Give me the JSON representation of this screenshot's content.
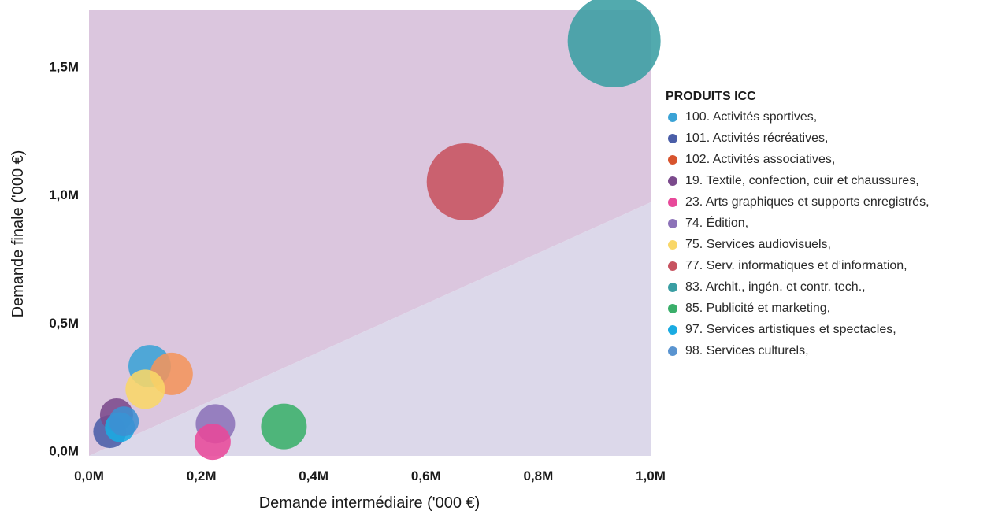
{
  "chart_data": {
    "type": "scatter",
    "xlabel": "Demande intermédiaire ('000 €)",
    "ylabel": "Demande finale ('000 €)",
    "xlim": [
      0,
      1.0
    ],
    "ylim": [
      -0.02,
      1.72
    ],
    "x_ticks": [
      {
        "value": 0.0,
        "label": "0,0M"
      },
      {
        "value": 0.2,
        "label": "0,2M"
      },
      {
        "value": 0.4,
        "label": "0,4M"
      },
      {
        "value": 0.6,
        "label": "0,6M"
      },
      {
        "value": 0.8,
        "label": "0,8M"
      },
      {
        "value": 1.0,
        "label": "1,0M"
      }
    ],
    "y_ticks": [
      {
        "value": 0.0,
        "label": "0,0M"
      },
      {
        "value": 0.5,
        "label": "0,5M"
      },
      {
        "value": 1.0,
        "label": "1,0M"
      },
      {
        "value": 1.5,
        "label": "1,5M"
      }
    ],
    "background": {
      "upper_region_color": "#dbc6de",
      "lower_region_color": "#dcd8ea",
      "boundary": [
        [
          0.0,
          -0.02
        ],
        [
          1.0,
          0.97
        ]
      ]
    },
    "legend_title": "PRODUITS ICC",
    "legend_position": "right",
    "series": [
      {
        "name": "100. Activités sportives,",
        "color": "#3ba3d6",
        "x": 0.108,
        "y": 0.33,
        "size": 27
      },
      {
        "name": "101. Activités récréatives,",
        "color": "#4a5ea8",
        "x": 0.037,
        "y": 0.075,
        "size": 21
      },
      {
        "name": "102. Activités associatives,",
        "color": "#f4955c",
        "x": 0.147,
        "y": 0.3,
        "size": 27
      },
      {
        "name": "19. Textile, confection, cuir et chaussures,",
        "color": "#7b4a8c",
        "x": 0.049,
        "y": 0.14,
        "size": 21
      },
      {
        "name": "23. Arts graphiques et supports enregistrés,",
        "color": "#e8499a",
        "x": 0.22,
        "y": 0.035,
        "size": 23
      },
      {
        "name": "74. Édition,",
        "color": "#8c72b8",
        "x": 0.225,
        "y": 0.105,
        "size": 25
      },
      {
        "name": "75. Services audiovisuels,",
        "color": "#f9d768",
        "x": 0.1,
        "y": 0.24,
        "size": 25
      },
      {
        "name": "77. Serv. informatiques et d’information,",
        "color": "#c75360",
        "x": 0.67,
        "y": 1.05,
        "size": 49
      },
      {
        "name": "83. Archit., ingén. et contr. tech.,",
        "color": "#3a9ea3",
        "x": 0.935,
        "y": 1.6,
        "size": 59
      },
      {
        "name": "85. Publicité et marketing,",
        "color": "#3aaf6a",
        "x": 0.347,
        "y": 0.095,
        "size": 29
      },
      {
        "name": "97. Services artistiques et spectacles,",
        "color": "#1aabe2",
        "x": 0.055,
        "y": 0.092,
        "size": 19
      },
      {
        "name": "98. Services culturels,",
        "color": "#3d8fd1",
        "x": 0.062,
        "y": 0.115,
        "size": 19
      }
    ],
    "legend_dot_colors": [
      "#3ba3d6",
      "#4a5ea8",
      "#d8542e",
      "#7b4a8c",
      "#e8499a",
      "#8c72b8",
      "#f9d768",
      "#c75360",
      "#3a9ea3",
      "#3aaf6a",
      "#1aabe2",
      "#5a94d0"
    ]
  }
}
